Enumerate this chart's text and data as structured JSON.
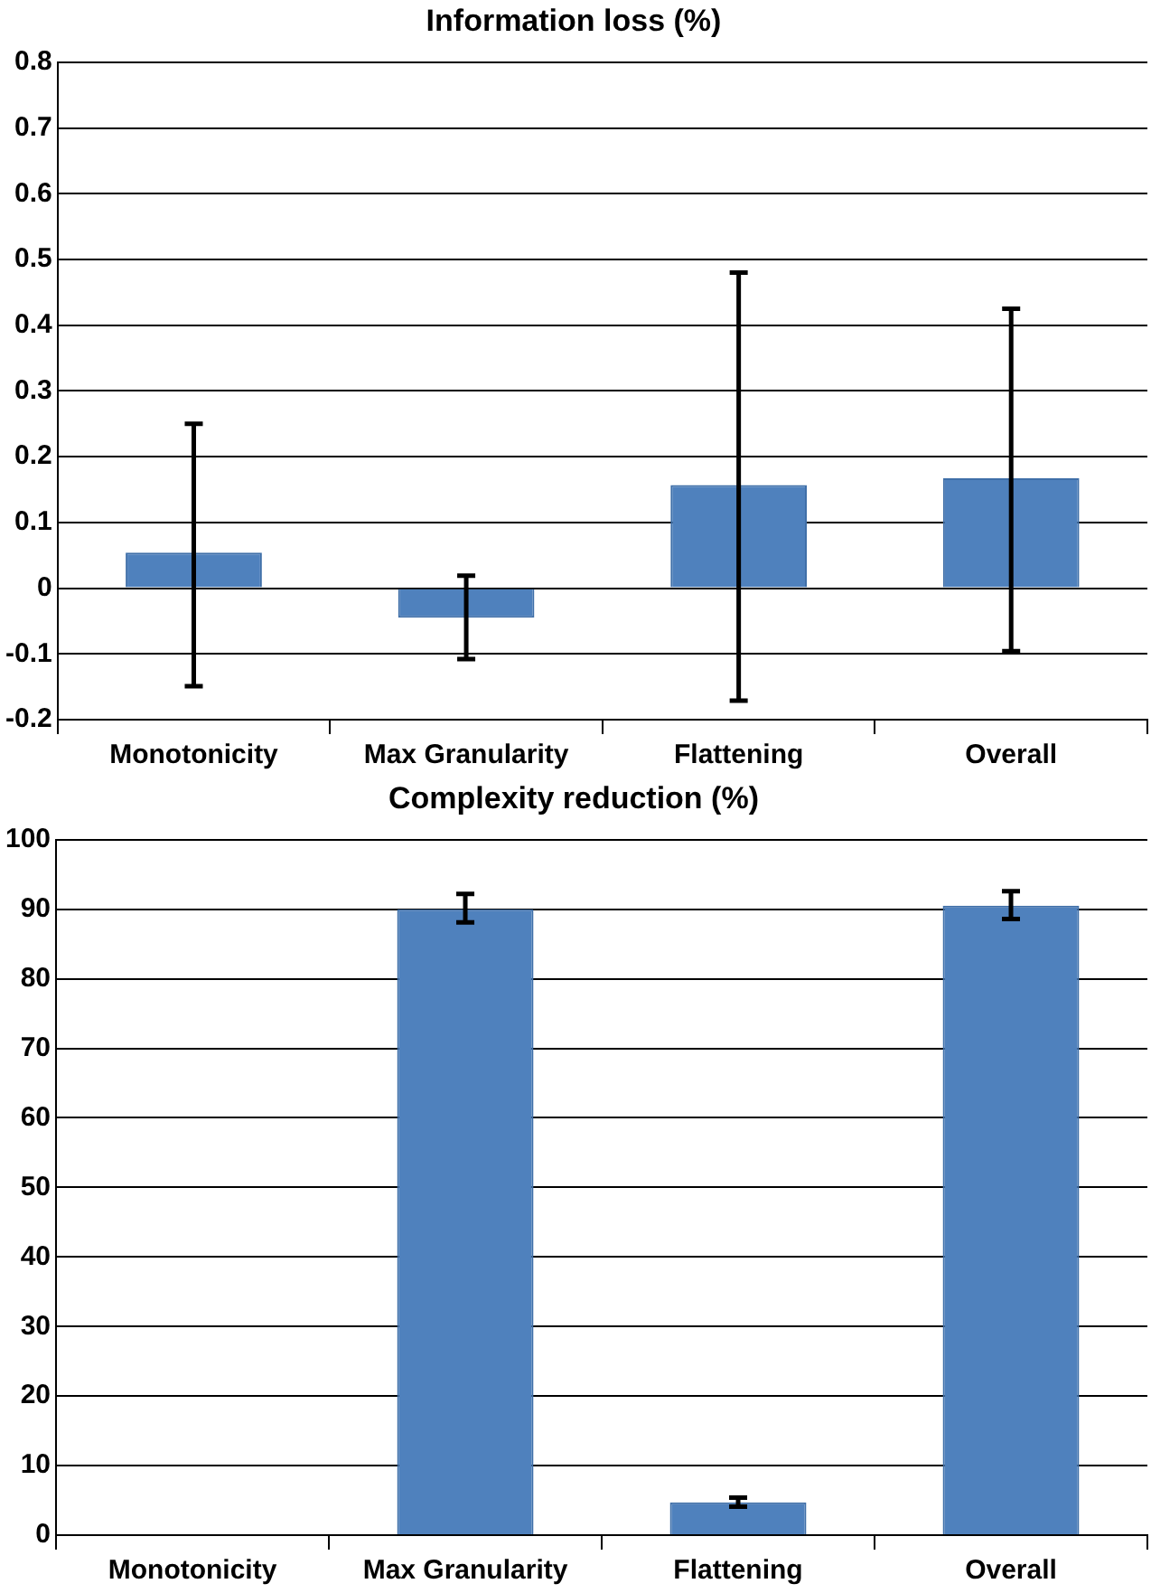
{
  "chart_data": [
    {
      "type": "bar",
      "title": "Information loss (%)",
      "categories": [
        "Monotonicity",
        "Max Granularity",
        "Flattening",
        "Overall"
      ],
      "values": [
        0.054,
        -0.045,
        0.157,
        0.167
      ],
      "color": "#4f81bd",
      "errors": [
        [
          -0.149,
          0.25
        ],
        [
          -0.108,
          0.019
        ],
        [
          -0.171,
          0.48
        ],
        [
          -0.096,
          0.425
        ]
      ],
      "ylim": [
        -0.2,
        0.8
      ],
      "yticks": [
        -0.2,
        -0.1,
        0,
        0.1,
        0.2,
        0.3,
        0.4,
        0.5,
        0.6,
        0.7,
        0.8
      ],
      "grid": "y"
    },
    {
      "type": "bar",
      "title": "Complexity reduction (%)",
      "categories": [
        "Monotonicity",
        "Max Granularity",
        "Flattening",
        "Overall"
      ],
      "values": [
        0,
        90,
        4.7,
        90.5
      ],
      "color": "#4f81bd",
      "errors": [
        null,
        [
          88.1,
          92.2
        ],
        [
          4.1,
          5.4
        ],
        [
          88.6,
          92.6
        ]
      ],
      "ylim": [
        0,
        100
      ],
      "yticks": [
        0,
        10,
        20,
        30,
        40,
        50,
        60,
        70,
        80,
        90,
        100
      ],
      "grid": "y"
    }
  ]
}
